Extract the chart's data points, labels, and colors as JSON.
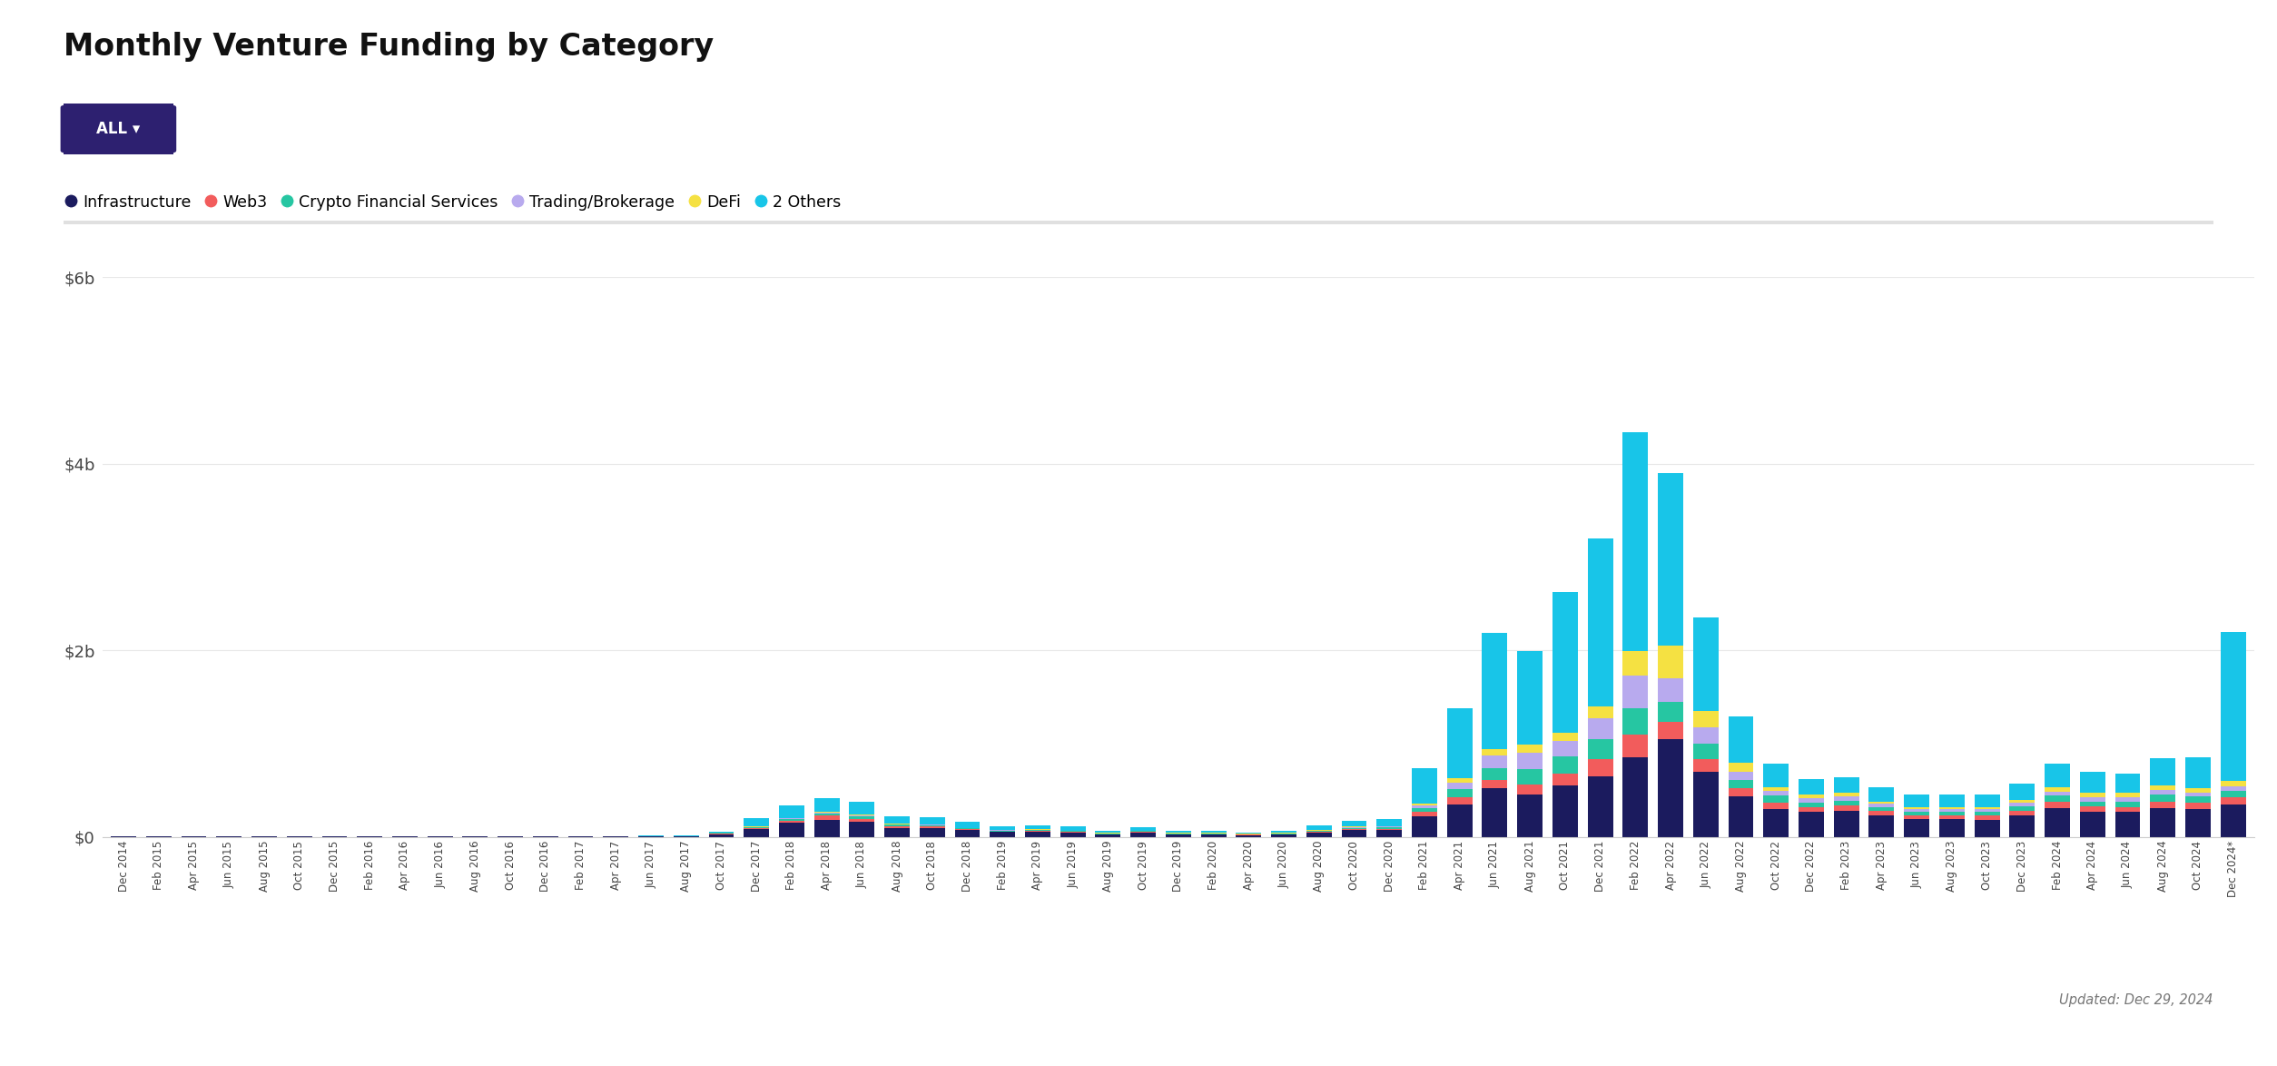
{
  "title": "Monthly Venture Funding by Category",
  "updated_text": "Updated: Dec 29, 2024",
  "categories": [
    "Infrastructure",
    "Web3",
    "Crypto Financial Services",
    "Trading/Brokerage",
    "DeFi",
    "2 Others"
  ],
  "colors": [
    "#1b1b5e",
    "#f25c5c",
    "#26c6a2",
    "#b8aaee",
    "#f5e142",
    "#18c5e8"
  ],
  "ylim": [
    0,
    6000000000
  ],
  "yticks": [
    0,
    2000000000,
    4000000000,
    6000000000
  ],
  "ytick_labels": [
    "$0",
    "$2b",
    "$4b",
    "$6b"
  ],
  "months": [
    "Dec 2014",
    "Feb 2015",
    "Apr 2015",
    "Jun 2015",
    "Aug 2015",
    "Oct 2015",
    "Dec 2015",
    "Feb 2016",
    "Apr 2016",
    "Jun 2016",
    "Aug 2016",
    "Oct 2016",
    "Dec 2016",
    "Feb 2017",
    "Apr 2017",
    "Jun 2017",
    "Aug 2017",
    "Oct 2017",
    "Dec 2017",
    "Feb 2018",
    "Apr 2018",
    "Jun 2018",
    "Aug 2018",
    "Oct 2018",
    "Dec 2018",
    "Feb 2019",
    "Apr 2019",
    "Jun 2019",
    "Aug 2019",
    "Oct 2019",
    "Dec 2019",
    "Feb 2020",
    "Apr 2020",
    "Jun 2020",
    "Aug 2020",
    "Oct 2020",
    "Dec 2020",
    "Feb 2021",
    "Apr 2021",
    "Jun 2021",
    "Aug 2021",
    "Oct 2021",
    "Dec 2021",
    "Feb 2022",
    "Apr 2022",
    "Jun 2022",
    "Aug 2022",
    "Oct 2022",
    "Dec 2022",
    "Feb 2023",
    "Apr 2023",
    "Jun 2023",
    "Aug 2023",
    "Oct 2023",
    "Dec 2023",
    "Feb 2024",
    "Apr 2024",
    "Jun 2024",
    "Aug 2024",
    "Oct 2024",
    "Dec 2024*"
  ],
  "data_Infrastructure": [
    5,
    5,
    5,
    5,
    5,
    5,
    5,
    5,
    5,
    5,
    5,
    5,
    5,
    5,
    5,
    10,
    5,
    30,
    80,
    150,
    180,
    160,
    90,
    90,
    70,
    50,
    55,
    45,
    25,
    45,
    25,
    25,
    18,
    25,
    45,
    70,
    70,
    220,
    350,
    520,
    450,
    550,
    650,
    850,
    1050,
    700,
    430,
    300,
    270,
    280,
    230,
    190,
    190,
    180,
    230,
    310,
    270,
    270,
    310,
    300,
    350
  ],
  "data_Web3": [
    0,
    0,
    0,
    0,
    0,
    0,
    0,
    0,
    0,
    0,
    0,
    0,
    0,
    0,
    0,
    0,
    0,
    5,
    15,
    25,
    45,
    35,
    25,
    18,
    12,
    8,
    8,
    8,
    4,
    8,
    4,
    4,
    4,
    4,
    8,
    12,
    15,
    45,
    70,
    90,
    110,
    130,
    180,
    250,
    180,
    130,
    90,
    70,
    50,
    55,
    45,
    35,
    35,
    45,
    50,
    70,
    60,
    50,
    70,
    70,
    75
  ],
  "data_CFS": [
    0,
    0,
    0,
    0,
    0,
    0,
    0,
    0,
    0,
    0,
    0,
    0,
    0,
    0,
    0,
    0,
    0,
    5,
    8,
    18,
    28,
    25,
    18,
    12,
    8,
    8,
    8,
    8,
    4,
    8,
    4,
    4,
    4,
    4,
    8,
    12,
    15,
    45,
    90,
    130,
    170,
    180,
    220,
    280,
    220,
    170,
    90,
    70,
    50,
    55,
    45,
    45,
    45,
    45,
    50,
    60,
    50,
    60,
    70,
    60,
    65
  ],
  "data_TB": [
    0,
    0,
    0,
    0,
    0,
    0,
    0,
    0,
    0,
    0,
    0,
    0,
    0,
    0,
    0,
    0,
    0,
    0,
    4,
    8,
    8,
    8,
    4,
    8,
    4,
    4,
    4,
    4,
    4,
    4,
    4,
    4,
    4,
    4,
    8,
    8,
    8,
    25,
    70,
    130,
    170,
    170,
    220,
    350,
    250,
    170,
    90,
    50,
    45,
    45,
    35,
    25,
    25,
    25,
    35,
    45,
    45,
    45,
    50,
    45,
    50
  ],
  "data_DeFi": [
    0,
    0,
    0,
    0,
    0,
    0,
    0,
    0,
    0,
    0,
    0,
    0,
    0,
    0,
    0,
    0,
    0,
    0,
    4,
    4,
    8,
    8,
    4,
    4,
    4,
    4,
    4,
    4,
    4,
    4,
    4,
    4,
    4,
    4,
    4,
    8,
    8,
    18,
    45,
    70,
    90,
    90,
    130,
    260,
    350,
    180,
    90,
    45,
    35,
    35,
    25,
    25,
    25,
    25,
    35,
    45,
    45,
    45,
    50,
    50,
    55
  ],
  "data_Others": [
    0,
    0,
    0,
    0,
    0,
    0,
    0,
    0,
    0,
    0,
    0,
    0,
    0,
    0,
    0,
    4,
    8,
    15,
    90,
    130,
    150,
    140,
    80,
    80,
    60,
    40,
    40,
    40,
    20,
    35,
    20,
    20,
    15,
    20,
    45,
    60,
    75,
    380,
    750,
    1250,
    1000,
    1500,
    1800,
    2350,
    1850,
    1000,
    500,
    250,
    170,
    170,
    150,
    130,
    130,
    130,
    170,
    250,
    230,
    210,
    290,
    330,
    1600
  ],
  "background_color": "#ffffff",
  "grid_color": "#e8e8e8",
  "font_color": "#111111",
  "button_color": "#2d2070"
}
